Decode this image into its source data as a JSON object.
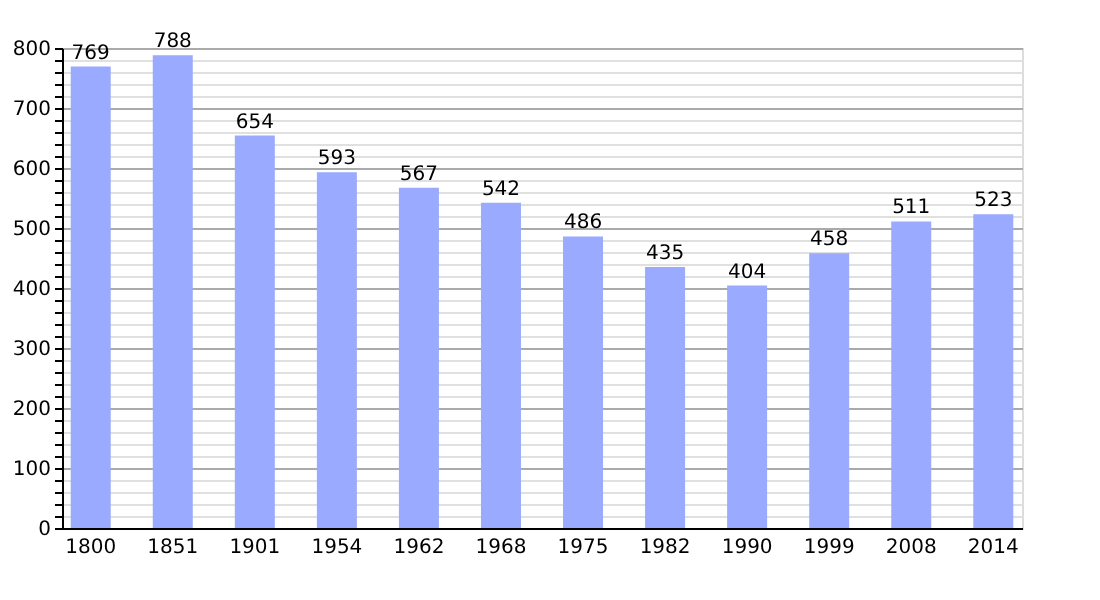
{
  "chart_data": {
    "type": "bar",
    "categories": [
      "1800",
      "1851",
      "1901",
      "1954",
      "1962",
      "1968",
      "1975",
      "1982",
      "1990",
      "1999",
      "2008",
      "2014"
    ],
    "values": [
      769,
      788,
      654,
      593,
      567,
      542,
      486,
      435,
      404,
      458,
      511,
      523
    ],
    "color": "#99aaff",
    "ylim": [
      0,
      800
    ],
    "yticks": [
      0,
      {
        "value": 20,
        "label": null
      },
      {
        "value": 40,
        "label": null
      },
      {
        "value": 60,
        "label": null
      },
      {
        "value": 80,
        "label": null
      },
      100,
      {
        "value": 120,
        "label": null
      },
      {
        "value": 140,
        "label": null
      },
      {
        "value": 160,
        "label": null
      },
      {
        "value": 180,
        "label": null
      },
      200,
      {
        "value": 220,
        "label": null
      },
      {
        "value": 240,
        "label": null
      },
      {
        "value": 260,
        "label": null
      },
      {
        "value": 280,
        "label": null
      },
      300,
      {
        "value": 320,
        "label": null
      },
      {
        "value": 340,
        "label": null
      },
      {
        "value": 360,
        "label": null
      },
      {
        "value": 380,
        "label": null
      },
      400,
      {
        "value": 420,
        "label": null
      },
      {
        "value": 440,
        "label": null
      },
      {
        "value": 460,
        "label": null
      },
      {
        "value": 480,
        "label": null
      },
      500,
      {
        "value": 520,
        "label": null
      },
      {
        "value": 540,
        "label": null
      },
      {
        "value": 560,
        "label": null
      },
      {
        "value": 580,
        "label": null
      },
      600,
      {
        "value": 620,
        "label": null
      },
      {
        "value": 640,
        "label": null
      },
      {
        "value": 660,
        "label": null
      },
      {
        "value": 680,
        "label": null
      },
      700,
      {
        "value": 720,
        "label": null
      },
      {
        "value": 740,
        "label": null
      },
      {
        "value": 760,
        "label": null
      },
      {
        "value": 780,
        "label": null
      },
      800
    ],
    "grid": "y",
    "data_labels": true
  }
}
